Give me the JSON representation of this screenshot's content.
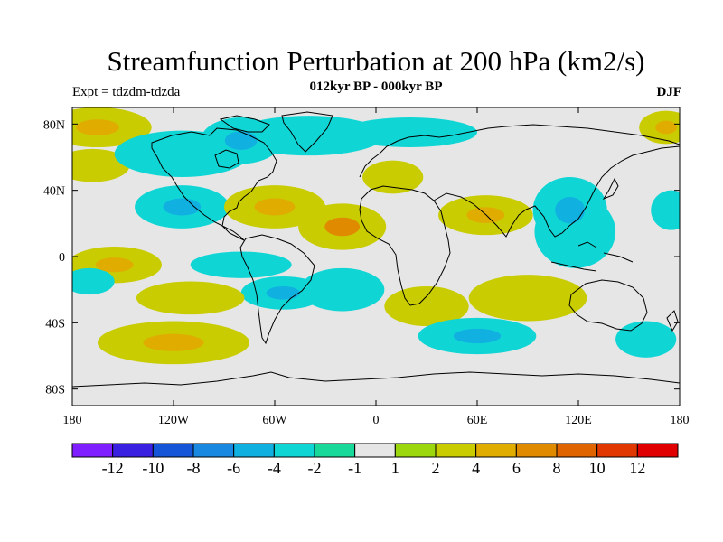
{
  "title": "Streamfunction Perturbation at 200 hPa (km2/s)",
  "subtitle": "012kyr BP - 000kyr BP",
  "left_label": "Expt = tdzdm-tdzda",
  "right_label": "DJF",
  "map": {
    "projection": "cylindrical equidistant",
    "lon_range": [
      -180,
      180
    ],
    "lat_range": [
      -90,
      90
    ],
    "background_color": "#e6e6e6",
    "x_ticks": [
      {
        "lon": -180,
        "label": "180"
      },
      {
        "lon": -120,
        "label": "120W"
      },
      {
        "lon": -60,
        "label": "60W"
      },
      {
        "lon": 0,
        "label": "0"
      },
      {
        "lon": 60,
        "label": "60E"
      },
      {
        "lon": 120,
        "label": "120E"
      },
      {
        "lon": 180,
        "label": "180"
      }
    ],
    "y_ticks": [
      {
        "lat": 80,
        "label": "80N"
      },
      {
        "lat": 40,
        "label": "40N"
      },
      {
        "lat": 0,
        "label": "0"
      },
      {
        "lat": -40,
        "label": "40S"
      },
      {
        "lat": -80,
        "label": "80S"
      }
    ],
    "anomalies": [
      {
        "lon": -165,
        "lat": 78,
        "rx": 32,
        "ry": 12,
        "level": 2,
        "core": 4
      },
      {
        "lon": 172,
        "lat": 78,
        "rx": 16,
        "ry": 10,
        "level": 2,
        "core": 4
      },
      {
        "lon": -168,
        "lat": 55,
        "rx": 22,
        "ry": 10,
        "level": 2
      },
      {
        "lon": -115,
        "lat": 62,
        "rx": 40,
        "ry": 14,
        "level": -2
      },
      {
        "lon": -80,
        "lat": 70,
        "rx": 24,
        "ry": 14,
        "level": -2,
        "core": -4
      },
      {
        "lon": -40,
        "lat": 73,
        "rx": 45,
        "ry": 12,
        "level": -2
      },
      {
        "lon": 20,
        "lat": 75,
        "rx": 40,
        "ry": 9,
        "level": -2
      },
      {
        "lon": 10,
        "lat": 48,
        "rx": 18,
        "ry": 10,
        "level": 2
      },
      {
        "lon": -115,
        "lat": 30,
        "rx": 28,
        "ry": 13,
        "level": -2,
        "core": -4
      },
      {
        "lon": -60,
        "lat": 30,
        "rx": 30,
        "ry": 13,
        "level": 2,
        "core": 4
      },
      {
        "lon": -20,
        "lat": 18,
        "rx": 26,
        "ry": 14,
        "level": 2,
        "core": 6
      },
      {
        "lon": 65,
        "lat": 25,
        "rx": 28,
        "ry": 12,
        "level": 2,
        "core": 4
      },
      {
        "lon": 175,
        "lat": 28,
        "rx": 12,
        "ry": 12,
        "level": -2
      },
      {
        "lon": 115,
        "lat": 28,
        "rx": 22,
        "ry": 20,
        "level": -2,
        "core": -4
      },
      {
        "lon": 118,
        "lat": 15,
        "rx": 24,
        "ry": 22,
        "level": -2
      },
      {
        "lon": -155,
        "lat": -5,
        "rx": 28,
        "ry": 11,
        "level": 2,
        "core": 4
      },
      {
        "lon": -170,
        "lat": -15,
        "rx": 15,
        "ry": 8,
        "level": -2
      },
      {
        "lon": -80,
        "lat": -5,
        "rx": 30,
        "ry": 8,
        "level": -2
      },
      {
        "lon": -55,
        "lat": -22,
        "rx": 25,
        "ry": 10,
        "level": -2,
        "core": -4
      },
      {
        "lon": -110,
        "lat": -25,
        "rx": 32,
        "ry": 10,
        "level": 2
      },
      {
        "lon": -120,
        "lat": -52,
        "rx": 45,
        "ry": 13,
        "level": 2,
        "core": 4
      },
      {
        "lon": -20,
        "lat": -20,
        "rx": 25,
        "ry": 13,
        "level": -2
      },
      {
        "lon": 30,
        "lat": -30,
        "rx": 25,
        "ry": 12,
        "level": 2
      },
      {
        "lon": 90,
        "lat": -25,
        "rx": 35,
        "ry": 14,
        "level": 2
      },
      {
        "lon": 60,
        "lat": -48,
        "rx": 35,
        "ry": 11,
        "level": -2,
        "core": -4
      },
      {
        "lon": 160,
        "lat": -50,
        "rx": 18,
        "ry": 11,
        "level": -2
      }
    ]
  },
  "colorbar": {
    "colors": [
      "#7f1fff",
      "#3a20e0",
      "#1556d8",
      "#1888e0",
      "#10b0e0",
      "#10d5d5",
      "#18d89a",
      "#e6e6e6",
      "#9cd60c",
      "#c8cc00",
      "#e0ac00",
      "#e08a00",
      "#e06400",
      "#e03800",
      "#e00000"
    ],
    "labels": [
      "-12",
      "-10",
      "-8",
      "-6",
      "-4",
      "-2",
      "-1",
      "1",
      "2",
      "4",
      "6",
      "8",
      "10",
      "12"
    ]
  }
}
